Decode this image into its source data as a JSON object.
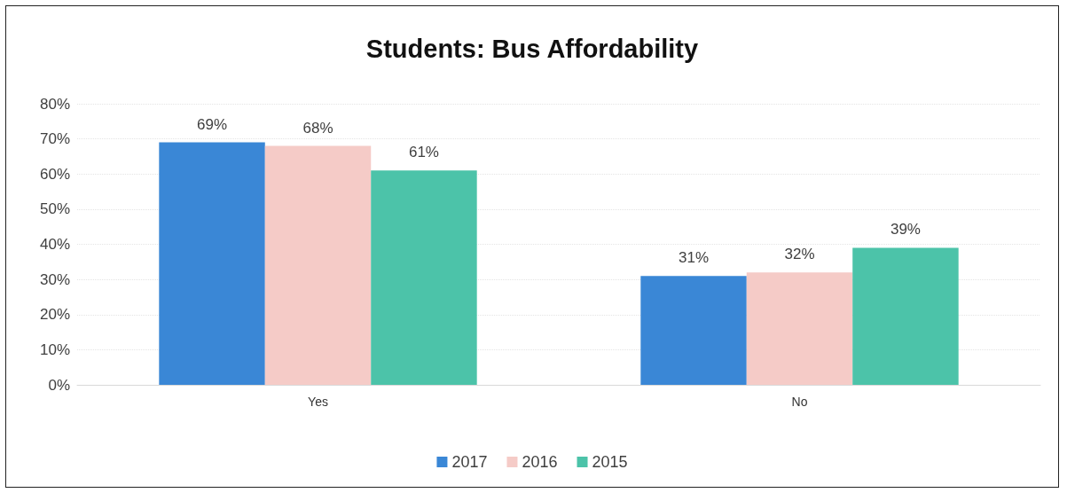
{
  "chart_data": {
    "type": "bar",
    "title": "Students: Bus Affordability",
    "categories": [
      "Yes",
      "No"
    ],
    "series": [
      {
        "name": "2017",
        "color": "#3a87d6",
        "values": [
          69,
          31
        ],
        "value_labels": [
          "69%",
          "31%"
        ]
      },
      {
        "name": "2016",
        "color": "#f5cbc7",
        "values": [
          68,
          32
        ],
        "value_labels": [
          "68%",
          "32%"
        ]
      },
      {
        "name": "2015",
        "color": "#4cc3a9",
        "values": [
          61,
          39
        ],
        "value_labels": [
          "61%",
          "39%"
        ]
      }
    ],
    "ylim": [
      0,
      80
    ],
    "yticks": [
      {
        "value": 0,
        "label": "0%"
      },
      {
        "value": 10,
        "label": "10%"
      },
      {
        "value": 20,
        "label": "20%"
      },
      {
        "value": 30,
        "label": "30%"
      },
      {
        "value": 40,
        "label": "40%"
      },
      {
        "value": 50,
        "label": "50%"
      },
      {
        "value": 60,
        "label": "60%"
      },
      {
        "value": 70,
        "label": "70%"
      },
      {
        "value": 80,
        "label": "80%"
      }
    ],
    "grid": "y",
    "legend": "bottom"
  }
}
